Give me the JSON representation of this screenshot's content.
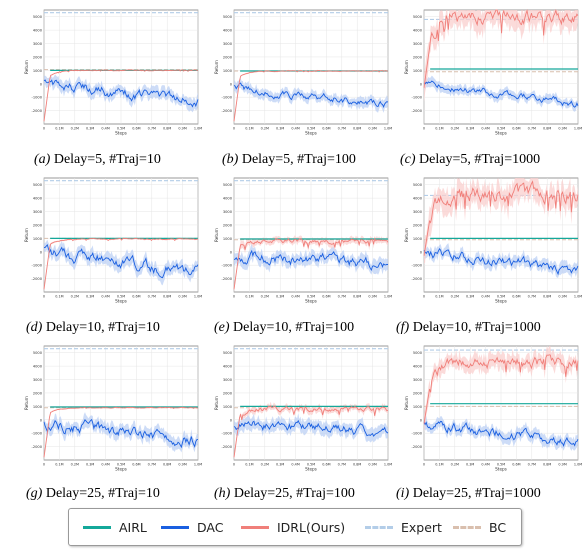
{
  "chart_data": [
    {
      "type": "line",
      "caption_tag": "(a)",
      "caption_text": "Delay=5, #Traj=10",
      "xlabel": "Steps",
      "ylabel": "Return",
      "xlim": [
        0,
        1.0
      ],
      "ylim": [
        -3000,
        5500
      ],
      "yticks": [
        -2000,
        -1000,
        0,
        1000,
        2000,
        3000,
        4000,
        5000
      ],
      "yticklabels": [
        "-2000",
        "-1000",
        "0",
        "1000",
        "2000",
        "3000",
        "4000",
        "5000"
      ],
      "xticks": [
        0,
        0.1,
        0.2,
        0.3,
        0.4,
        0.5,
        0.6,
        0.7,
        0.8,
        0.9,
        1.0
      ],
      "xticklabels": [
        "0",
        "0.1M",
        "0.2M",
        "0.3M",
        "0.4M",
        "0.5M",
        "0.6M",
        "0.7M",
        "0.8M",
        "0.9M",
        "1.0M"
      ],
      "expert": 5300,
      "bc": 1050,
      "airl": 1000,
      "dac_start": 0,
      "dac_end": -1350,
      "dac_noise": 260,
      "idrl_start": -2800,
      "idrl_level": 1000,
      "idrl_noise": 20,
      "idrl_band": 40,
      "dac_band": 450,
      "seed": 11
    },
    {
      "type": "line",
      "caption_tag": "(b)",
      "caption_text": "Delay=5, #Traj=100",
      "xlabel": "Steps",
      "ylabel": "Return",
      "xlim": [
        0,
        1.0
      ],
      "ylim": [
        -3000,
        5500
      ],
      "yticks": [
        -2000,
        -1000,
        0,
        1000,
        2000,
        3000,
        4000,
        5000
      ],
      "yticklabels": [
        "-2000",
        "-1000",
        "0",
        "1000",
        "2000",
        "3000",
        "4000",
        "5000"
      ],
      "xticks": [
        0,
        0.1,
        0.2,
        0.3,
        0.4,
        0.5,
        0.6,
        0.7,
        0.8,
        0.9,
        1.0
      ],
      "xticklabels": [
        "0",
        "0.1M",
        "0.2M",
        "0.3M",
        "0.4M",
        "0.5M",
        "0.6M",
        "0.7M",
        "0.8M",
        "0.9M",
        "1.0M"
      ],
      "expert": 5300,
      "bc": 950,
      "airl": 950,
      "dac_start": -300,
      "dac_end": -1500,
      "dac_noise": 200,
      "idrl_start": -2800,
      "idrl_level": 950,
      "idrl_noise": 20,
      "idrl_band": 50,
      "dac_band": 400,
      "seed": 23
    },
    {
      "type": "line",
      "caption_tag": "(c)",
      "caption_text": "Delay=5, #Traj=1000",
      "xlabel": "Steps",
      "ylabel": "Return",
      "xlim": [
        0,
        1.0
      ],
      "ylim": [
        -3000,
        5500
      ],
      "yticks": [
        -2000,
        -1000,
        0,
        1000,
        2000,
        3000,
        4000,
        5000
      ],
      "yticklabels": [
        "-2000",
        "-1000",
        "0",
        "1000",
        "2000",
        "3000",
        "4000",
        "5000"
      ],
      "xticks": [
        0,
        0.1,
        0.2,
        0.3,
        0.4,
        0.5,
        0.6,
        0.7,
        0.8,
        0.9,
        1.0
      ],
      "xticklabels": [
        "0",
        "0.1M",
        "0.2M",
        "0.3M",
        "0.4M",
        "0.5M",
        "0.6M",
        "0.7M",
        "0.8M",
        "0.9M",
        "1.0M"
      ],
      "expert": 4800,
      "bc": 900,
      "airl": 1100,
      "dac_start": 0,
      "dac_end": -1500,
      "dac_noise": 180,
      "idrl_start": -300,
      "idrl_level": 5000,
      "idrl_noise": 350,
      "idrl_band": 900,
      "dac_band": 350,
      "seed": 37
    },
    {
      "type": "line",
      "caption_tag": "(d)",
      "caption_text": "Delay=10, #Traj=10",
      "xlabel": "Steps",
      "ylabel": "Return",
      "xlim": [
        0,
        1.0
      ],
      "ylim": [
        -3000,
        5500
      ],
      "yticks": [
        -2000,
        -1000,
        0,
        1000,
        2000,
        3000,
        4000,
        5000
      ],
      "yticklabels": [
        "-2000",
        "-1000",
        "0",
        "1000",
        "2000",
        "3000",
        "4000",
        "5000"
      ],
      "xticks": [
        0,
        0.1,
        0.2,
        0.3,
        0.4,
        0.5,
        0.6,
        0.7,
        0.8,
        0.9,
        1.0
      ],
      "xticklabels": [
        "0",
        "0.1M",
        "0.2M",
        "0.3M",
        "0.4M",
        "0.5M",
        "0.6M",
        "0.7M",
        "0.8M",
        "0.9M",
        "1.0M"
      ],
      "expert": 5300,
      "bc": 1000,
      "airl": 1000,
      "dac_start": 0,
      "dac_end": -1500,
      "dac_noise": 320,
      "idrl_start": -2800,
      "idrl_level": 950,
      "idrl_noise": 25,
      "idrl_band": 60,
      "dac_band": 500,
      "seed": 41
    },
    {
      "type": "line",
      "caption_tag": "(e)",
      "caption_text": "Delay=10, #Traj=100",
      "xlabel": "Steps",
      "ylabel": "Return",
      "xlim": [
        0,
        1.0
      ],
      "ylim": [
        -3000,
        5500
      ],
      "yticks": [
        -2000,
        -1000,
        0,
        1000,
        2000,
        3000,
        4000,
        5000
      ],
      "yticklabels": [
        "-2000",
        "-1000",
        "0",
        "1000",
        "2000",
        "3000",
        "4000",
        "5000"
      ],
      "xticks": [
        0,
        0.1,
        0.2,
        0.3,
        0.4,
        0.5,
        0.6,
        0.7,
        0.8,
        0.9,
        1.0
      ],
      "xticklabels": [
        "0",
        "0.1M",
        "0.2M",
        "0.3M",
        "0.4M",
        "0.5M",
        "0.6M",
        "0.7M",
        "0.8M",
        "0.9M",
        "1.0M"
      ],
      "expert": 5300,
      "bc": 900,
      "airl": 950,
      "dac_start": -300,
      "dac_end": -900,
      "dac_noise": 280,
      "idrl_start": -2800,
      "idrl_level": 800,
      "idrl_noise": 120,
      "idrl_band": 250,
      "dac_band": 500,
      "seed": 53
    },
    {
      "type": "line",
      "caption_tag": "(f)",
      "caption_text": "Delay=10, #Traj=1000",
      "xlabel": "Steps",
      "ylabel": "Return",
      "xlim": [
        0,
        1.0
      ],
      "ylim": [
        -3000,
        5500
      ],
      "yticks": [
        -2000,
        -1000,
        0,
        1000,
        2000,
        3000,
        4000,
        5000
      ],
      "yticklabels": [
        "-2000",
        "-1000",
        "0",
        "1000",
        "2000",
        "3000",
        "4000",
        "5000"
      ],
      "xticks": [
        0,
        0.1,
        0.2,
        0.3,
        0.4,
        0.5,
        0.6,
        0.7,
        0.8,
        0.9,
        1.0
      ],
      "xticklabels": [
        "0",
        "0.1M",
        "0.2M",
        "0.3M",
        "0.4M",
        "0.5M",
        "0.6M",
        "0.7M",
        "0.8M",
        "0.9M",
        "1.0M"
      ],
      "expert": 4200,
      "bc": 900,
      "airl": 1000,
      "dac_start": 0,
      "dac_end": -1400,
      "dac_noise": 260,
      "idrl_start": -300,
      "idrl_level": 4300,
      "idrl_noise": 400,
      "idrl_band": 900,
      "dac_band": 450,
      "seed": 67
    },
    {
      "type": "line",
      "caption_tag": "(g)",
      "caption_text": "Delay=25, #Traj=10",
      "xlabel": "Steps",
      "ylabel": "Return",
      "xlim": [
        0,
        1.0
      ],
      "ylim": [
        -3000,
        5500
      ],
      "yticks": [
        -2000,
        -1000,
        0,
        1000,
        2000,
        3000,
        4000,
        5000
      ],
      "yticklabels": [
        "-2000",
        "-1000",
        "0",
        "1000",
        "2000",
        "3000",
        "4000",
        "5000"
      ],
      "xticks": [
        0,
        0.1,
        0.2,
        0.3,
        0.4,
        0.5,
        0.6,
        0.7,
        0.8,
        0.9,
        1.0
      ],
      "xticklabels": [
        "0",
        "0.1M",
        "0.2M",
        "0.3M",
        "0.4M",
        "0.5M",
        "0.6M",
        "0.7M",
        "0.8M",
        "0.9M",
        "1.0M"
      ],
      "expert": 5300,
      "bc": 900,
      "airl": 950,
      "dac_start": -300,
      "dac_end": -1500,
      "dac_noise": 300,
      "idrl_start": -2800,
      "idrl_level": 900,
      "idrl_noise": 20,
      "idrl_band": 50,
      "dac_band": 500,
      "seed": 79
    },
    {
      "type": "line",
      "caption_tag": "(h)",
      "caption_text": "Delay=25, #Traj=100",
      "xlabel": "Steps",
      "ylabel": "Return",
      "xlim": [
        0,
        1.0
      ],
      "ylim": [
        -3000,
        5500
      ],
      "yticks": [
        -2000,
        -1000,
        0,
        1000,
        2000,
        3000,
        4000,
        5000
      ],
      "yticklabels": [
        "-2000",
        "-1000",
        "0",
        "1000",
        "2000",
        "3000",
        "4000",
        "5000"
      ],
      "xticks": [
        0,
        0.1,
        0.2,
        0.3,
        0.4,
        0.5,
        0.6,
        0.7,
        0.8,
        0.9,
        1.0
      ],
      "xticklabels": [
        "0",
        "0.1M",
        "0.2M",
        "0.3M",
        "0.4M",
        "0.5M",
        "0.6M",
        "0.7M",
        "0.8M",
        "0.9M",
        "1.0M"
      ],
      "expert": 5300,
      "bc": 900,
      "airl": 1000,
      "dac_start": -300,
      "dac_end": -900,
      "dac_noise": 250,
      "idrl_start": -2800,
      "idrl_level": 800,
      "idrl_noise": 130,
      "idrl_band": 250,
      "dac_band": 500,
      "seed": 83
    },
    {
      "type": "line",
      "caption_tag": "(i)",
      "caption_text": "Delay=25, #Traj=1000",
      "xlabel": "Steps",
      "ylabel": "Return",
      "xlim": [
        0,
        1.0
      ],
      "ylim": [
        -3000,
        5500
      ],
      "yticks": [
        -2000,
        -1000,
        0,
        1000,
        2000,
        3000,
        4000,
        5000
      ],
      "yticklabels": [
        "-2000",
        "-1000",
        "0",
        "1000",
        "2000",
        "3000",
        "4000",
        "5000"
      ],
      "xticks": [
        0,
        0.1,
        0.2,
        0.3,
        0.4,
        0.5,
        0.6,
        0.7,
        0.8,
        0.9,
        1.0
      ],
      "xticklabels": [
        "0",
        "0.1M",
        "0.2M",
        "0.3M",
        "0.4M",
        "0.5M",
        "0.6M",
        "0.7M",
        "0.8M",
        "0.9M",
        "1.0M"
      ],
      "expert": 5200,
      "bc": 1000,
      "airl": 1200,
      "dac_start": -300,
      "dac_end": -1700,
      "dac_noise": 260,
      "idrl_start": -300,
      "idrl_level": 4300,
      "idrl_noise": 300,
      "idrl_band": 600,
      "dac_band": 450,
      "seed": 97
    }
  ],
  "legend": {
    "placement": "bottom-center",
    "items": [
      {
        "label": "AIRL",
        "color": "#14a89a",
        "style": "solid"
      },
      {
        "label": "DAC",
        "color": "#1a5fe0",
        "style": "solid"
      },
      {
        "label": "IDRL(Ours)",
        "color": "#f07f7a",
        "style": "solid"
      },
      {
        "label": "Expert",
        "color": "#b3cde8",
        "style": "dashed"
      },
      {
        "label": "BC",
        "color": "#d9bfae",
        "style": "dashed"
      }
    ]
  },
  "colors": {
    "airl": "#14a89a",
    "dac": "#1a5fe0",
    "dac_band": "#b8cdf3",
    "idrl": "#f07f7a",
    "idrl_band": "#f9cfcd",
    "expert": "#b3cde8",
    "bc": "#d9bfae",
    "grid": "#e5e5e5",
    "axis": "#555555"
  }
}
